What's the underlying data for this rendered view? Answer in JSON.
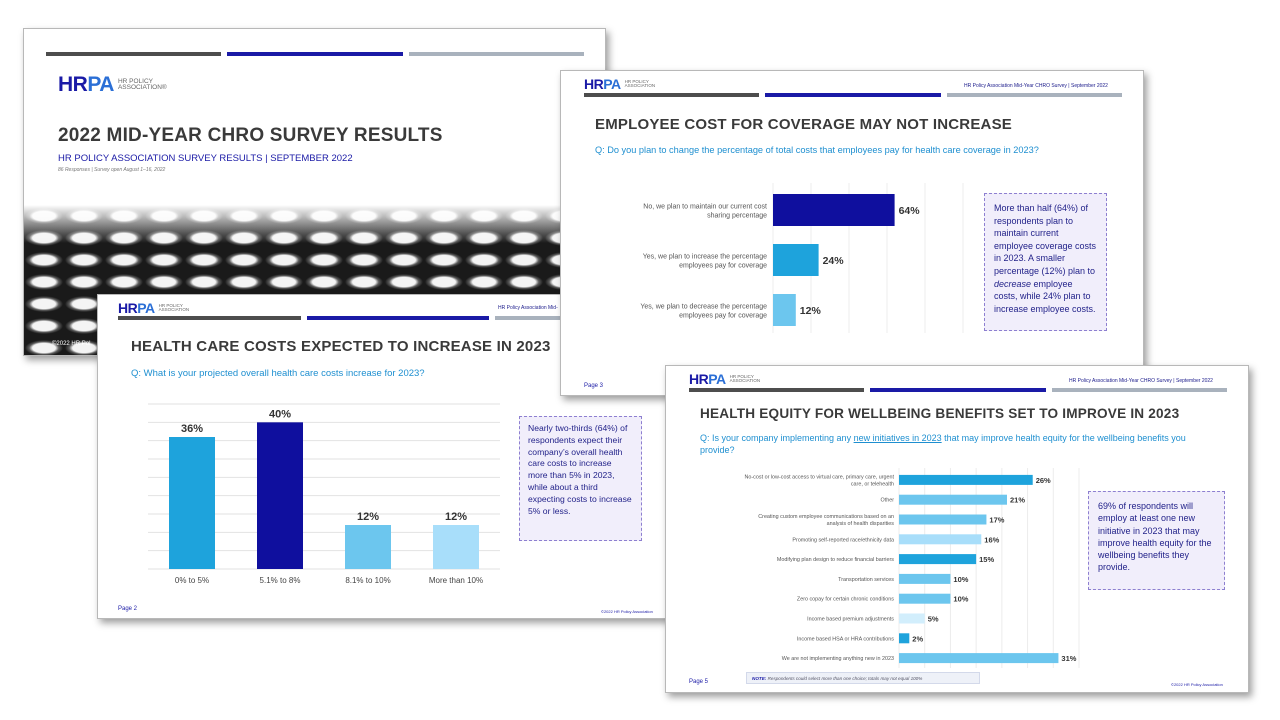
{
  "brand": {
    "logo_mark_hr": "HR",
    "logo_mark_pa": "PA",
    "logo_sub_line1": "HR POLICY",
    "logo_sub_line2": "ASSOCIATION®",
    "logo_sub_line2_alt": "ASSOCIATION"
  },
  "colors": {
    "navy": "#1a1aa6",
    "blue": "#1ea3dc",
    "sky": "#6cc6ee",
    "pale": "#a8defa",
    "text_blue": "#1e8fd0"
  },
  "cover": {
    "title": "2022 MID-YEAR CHRO SURVEY RESULTS",
    "subtitle": "HR POLICY ASSOCIATION SURVEY RESULTS  |  SEPTEMBER 2022",
    "note": "86 Responses | Survey open August 1–16, 2022",
    "copyright": "©2022 HR Pol"
  },
  "slide2": {
    "header_right": "HR Policy Association Mid-",
    "title": "HEALTH CARE COSTS EXPECTED TO INCREASE IN 2023",
    "question": "Q: What is your projected overall health care costs increase for 2023?",
    "callout": "Nearly two-thirds (64%) of respondents expect their company’s overall health care costs to increase more than 5% in 2023, while about a third expecting costs to increase 5% or less.",
    "page": "Page 2",
    "footer": "©2022 HR Policy Association"
  },
  "slide3": {
    "header_right": "HR Policy Association Mid-Year CHRO Survey  |  September 2022",
    "title": "EMPLOYEE COST FOR COVERAGE MAY NOT INCREASE",
    "question": "Q: Do you plan to change the percentage of total costs that employees pay for health care coverage in 2023?",
    "callout_part1": "More than half (64%) of respondents plan to maintain current employee coverage costs in 2023. A smaller percentage (12%) plan to ",
    "callout_italic": "decrease",
    "callout_part2": " employee costs, while 24% plan to increase employee costs.",
    "page": "Page 3"
  },
  "slide4": {
    "header_right": "HR Policy Association Mid-Year CHRO Survey  |  September 2022",
    "title": "HEALTH EQUITY FOR WELLBEING BENEFITS SET TO IMPROVE IN 2023",
    "question_part1": "Q: Is your company implementing any ",
    "question_link": "new initiatives in 2023",
    "question_part2": " that may improve health equity for the wellbeing benefits you provide?",
    "callout": "69% of respondents will employ at least one new initiative in 2023 that may improve health equity for the wellbeing benefits they provide.",
    "note_label": "NOTE:",
    "note_text": " Respondents could select more than one choice; totals may not equal 100%",
    "page": "Page 5",
    "footer": "©2022 HR Policy Association"
  },
  "chart_data": [
    {
      "type": "bar",
      "title": "HEALTH CARE COSTS EXPECTED TO INCREASE IN 2023",
      "categories": [
        "0% to 5%",
        "5.1% to 8%",
        "8.1% to 10%",
        "More than 10%"
      ],
      "values": [
        36,
        40,
        12,
        12
      ],
      "value_labels": [
        "36%",
        "40%",
        "12%",
        "12%"
      ],
      "ylim": [
        0,
        45
      ],
      "grid": true,
      "bar_colors": [
        "#1ea3dc",
        "#0f0f9e",
        "#6cc6ee",
        "#a8defa"
      ]
    },
    {
      "type": "bar",
      "orientation": "horizontal",
      "title": "EMPLOYEE COST FOR COVERAGE MAY NOT INCREASE",
      "categories": [
        "No, we plan to maintain our current cost sharing percentage",
        "Yes, we plan to increase the percentage employees pay for coverage",
        "Yes, we plan to decrease the percentage employees pay for coverage"
      ],
      "category_lines": [
        [
          "No, we plan to maintain our current cost",
          "sharing percentage"
        ],
        [
          "Yes, we plan to increase the percentage",
          "employees pay for coverage"
        ],
        [
          "Yes, we plan to decrease the percentage",
          "employees pay for coverage"
        ]
      ],
      "values": [
        64,
        24,
        12
      ],
      "value_labels": [
        "64%",
        "24%",
        "12%"
      ],
      "xlim": [
        0,
        100
      ],
      "bar_colors": [
        "#0f0f9e",
        "#1ea3dc",
        "#6cc6ee"
      ]
    },
    {
      "type": "bar",
      "orientation": "horizontal",
      "title": "HEALTH EQUITY FOR WELLBEING BENEFITS SET TO IMPROVE IN 2023",
      "categories": [
        "No-cost or low-cost access to virtual care, primary care, urgent care, or telehealth",
        "Other",
        "Creating custom employee communications based on an analysis of health disparities",
        "Promoting self-reported race/ethnicity data",
        "Modifying plan design to reduce financial barriers",
        "Transportation services",
        "Zero copay for certain chronic conditions",
        "Income based premium adjustments",
        "Income based HSA or HRA contributions",
        "We are not implementing anything new in 2023"
      ],
      "category_lines": [
        [
          "No-cost or low-cost access to virtual care, primary care, urgent",
          "care, or telehealth"
        ],
        [
          "Other"
        ],
        [
          "Creating custom employee communications based on an",
          "analysis of health disparities"
        ],
        [
          "Promoting self-reported race/ethnicity data"
        ],
        [
          "Modifying plan design to reduce financial barriers"
        ],
        [
          "Transportation services"
        ],
        [
          "Zero copay for certain chronic conditions"
        ],
        [
          "Income based premium adjustments"
        ],
        [
          "Income based HSA or HRA contributions"
        ],
        [
          "We are not implementing anything new in 2023"
        ]
      ],
      "values": [
        26,
        21,
        17,
        16,
        15,
        10,
        10,
        5,
        2,
        31
      ],
      "value_labels": [
        "26%",
        "21%",
        "17%",
        "16%",
        "15%",
        "10%",
        "10%",
        "5%",
        "2%",
        "31%"
      ],
      "xlim": [
        0,
        35
      ],
      "bar_colors": [
        "#1ea3dc",
        "#6cc6ee",
        "#6cc6ee",
        "#a8defa",
        "#1ea3dc",
        "#6cc6ee",
        "#6cc6ee",
        "#d2eefc",
        "#1ea3dc",
        "#6cc6ee"
      ]
    }
  ]
}
